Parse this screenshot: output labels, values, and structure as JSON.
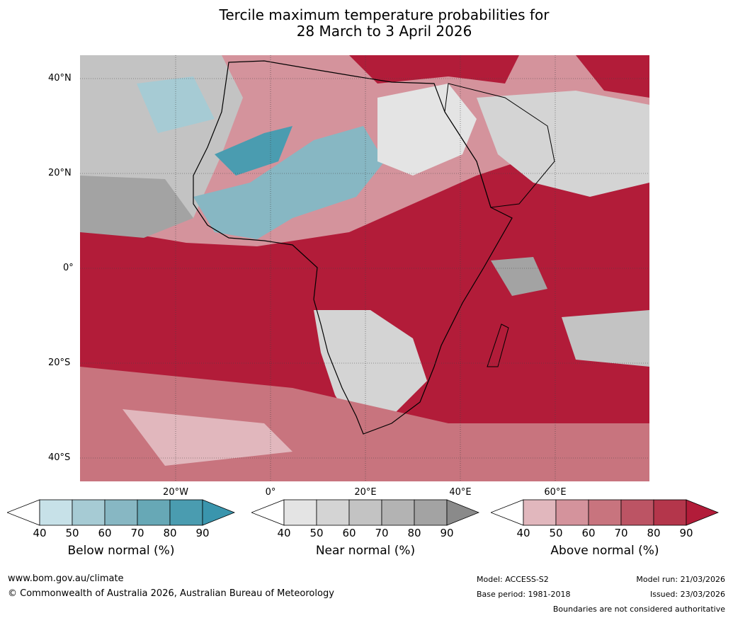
{
  "title_line1": "Tercile maximum temperature probabilities for",
  "title_line2": "28 March to 3 April 2026",
  "map": {
    "lat_labels": [
      "40°N",
      "20°N",
      "0°",
      "20°S",
      "40°S"
    ],
    "lon_labels": [
      "20°W",
      "0°",
      "20°E",
      "40°E",
      "60°E"
    ]
  },
  "legend": {
    "below": {
      "label": "Below normal (%)",
      "ticks": [
        "40",
        "50",
        "60",
        "70",
        "80",
        "90"
      ],
      "colors": [
        "#ffffff",
        "#c7e1e8",
        "#a6cbd4",
        "#87b7c3",
        "#67a8b6",
        "#4a9cb0",
        "#3a95ad"
      ]
    },
    "near": {
      "label": "Near normal (%)",
      "ticks": [
        "40",
        "50",
        "60",
        "70",
        "80",
        "90"
      ],
      "colors": [
        "#ffffff",
        "#e4e4e4",
        "#d4d4d4",
        "#c3c3c3",
        "#b3b3b3",
        "#a3a3a3",
        "#8a8a8a"
      ]
    },
    "above": {
      "label": "Above normal (%)",
      "ticks": [
        "40",
        "50",
        "60",
        "70",
        "80",
        "90"
      ],
      "colors": [
        "#ffffff",
        "#e1b7bd",
        "#d4939c",
        "#c8747e",
        "#bc5464",
        "#b4364b",
        "#b21c39"
      ]
    }
  },
  "footer": {
    "website": "www.bom.gov.au/climate",
    "copyright": "© Commonwealth of Australia 2026, Australian Bureau of Meteorology",
    "model": "Model: ACCESS-S2",
    "base_period": "Base period: 1981-2018",
    "model_run": "Model run: 21/03/2026",
    "issued": "Issued: 23/03/2026",
    "disclaimer": "Boundaries are not considered authoritative"
  }
}
